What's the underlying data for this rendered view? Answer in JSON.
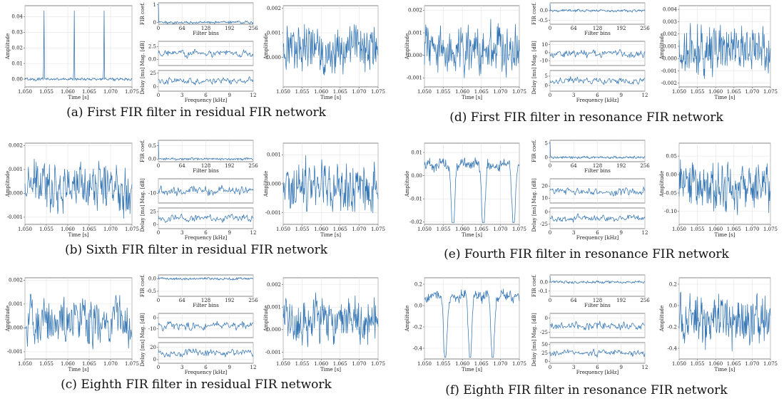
{
  "colors": {
    "trace": "#3576b4",
    "frame": "#555555",
    "grid": "#e3e3e3"
  },
  "labels": {
    "amplitude": "Amplitude",
    "time": "Time [s]",
    "fir_coef": "FIR coef.",
    "filter_bins": "Filter bins",
    "mag": "Mag. [dB]",
    "delay": "Delay [ms]",
    "frequency": "Frequency [kHz]"
  },
  "ticks": {
    "time": [
      "1.050",
      "1.055",
      "1.060",
      "1.065",
      "1.070",
      "1.075"
    ],
    "bins": [
      "0",
      "64",
      "128",
      "192",
      "256"
    ],
    "freq": [
      "0",
      "3",
      "6",
      "9",
      "12"
    ]
  },
  "chart_data": [
    {
      "id": "a",
      "type": "line",
      "caption": "(a) First FIR filter in residual FIR network",
      "input": {
        "kind": "spikes",
        "spikes_at": [
          1.0545,
          1.0615,
          1.0685
        ],
        "ylim": [
          -0.005,
          0.047
        ],
        "yticks": [
          "0.00",
          "0.01",
          "0.02",
          "0.03",
          "0.04"
        ],
        "ytick_values": [
          0,
          0.01,
          0.02,
          0.03,
          0.04
        ]
      },
      "coef": {
        "yticks": [
          "0",
          "1"
        ],
        "ytick_values": [
          0,
          1
        ],
        "ylim": [
          -0.1,
          1.1
        ]
      },
      "mag": {
        "yticks": [
          "0.0",
          "2.5"
        ],
        "ytick_values": [
          0,
          2.5
        ],
        "ylim": [
          -1.2,
          3.5
        ]
      },
      "delay": {
        "yticks": [
          "0",
          "25"
        ],
        "ytick_values": [
          0,
          25
        ],
        "ylim": [
          -8,
          30
        ]
      },
      "output": {
        "ylim": [
          -0.0012,
          0.0021
        ],
        "yticks": [
          "0.000",
          "0.001",
          "0.002"
        ],
        "ytick_values": [
          0,
          0.001,
          0.002
        ]
      }
    },
    {
      "id": "b",
      "type": "line",
      "caption": "(b) Sixth FIR filter in residual FIR network",
      "input": {
        "kind": "noise",
        "ylim": [
          -0.0013,
          0.0021
        ],
        "yticks": [
          "-0.001",
          "0.000",
          "0.001",
          "0.002"
        ],
        "ytick_values": [
          -0.001,
          0,
          0.001,
          0.002
        ]
      },
      "coef": {
        "yticks": [
          "0.5",
          "0.0"
        ],
        "ytick_values": [
          0.5,
          0
        ],
        "ylim": [
          -0.1,
          0.7
        ]
      },
      "mag": {
        "yticks": [
          "-10"
        ],
        "ytick_values": [
          -10
        ],
        "ylim": [
          -18,
          2
        ]
      },
      "delay": {
        "yticks": [
          "0",
          "25"
        ],
        "ytick_values": [
          0,
          25
        ],
        "ylim": [
          -8,
          32
        ]
      },
      "output": {
        "ylim": [
          -0.0014,
          0.0014
        ],
        "yticks": [
          "-0.001",
          "0.000",
          "0.001"
        ],
        "ytick_values": [
          -0.001,
          0,
          0.001
        ]
      }
    },
    {
      "id": "c",
      "type": "line",
      "caption": "(c) Eighth FIR filter in residual FIR network",
      "input": {
        "kind": "noise",
        "ylim": [
          -0.0013,
          0.0021
        ],
        "yticks": [
          "-0.001",
          "0.000",
          "0.001",
          "0.002"
        ],
        "ytick_values": [
          -0.001,
          0,
          0.001,
          0.002
        ]
      },
      "coef": {
        "yticks": [
          "0.0",
          "-0.5"
        ],
        "ytick_values": [
          0,
          -0.5
        ],
        "ylim": [
          -0.7,
          0.15
        ]
      },
      "mag": {
        "yticks": [
          "0",
          "-10"
        ],
        "ytick_values": [
          0,
          -10
        ],
        "ylim": [
          -18,
          4
        ]
      },
      "delay": {
        "yticks": [
          "0",
          "20"
        ],
        "ytick_values": [
          0,
          20
        ],
        "ylim": [
          -6,
          28
        ]
      },
      "output": {
        "ylim": [
          -0.0013,
          0.0023
        ],
        "yticks": [
          "-0.001",
          "0.000",
          "0.001",
          "0.002"
        ],
        "ytick_values": [
          -0.001,
          0,
          0.001,
          0.002
        ]
      }
    },
    {
      "id": "d",
      "type": "line",
      "caption": "(d) First FIR filter in resonance FIR network",
      "input": {
        "kind": "noise",
        "ylim": [
          -0.0014,
          0.0022
        ],
        "yticks": [
          "-0.001",
          "0.000",
          "0.001",
          "0.002"
        ],
        "ytick_values": [
          -0.001,
          0,
          0.001,
          0.002
        ]
      },
      "coef": {
        "yticks": [
          "0.0",
          "-0.5"
        ],
        "ytick_values": [
          0,
          -0.5
        ],
        "ylim": [
          -0.7,
          0.4
        ]
      },
      "mag": {
        "yticks": [
          "10",
          "0",
          "-10"
        ],
        "ytick_values": [
          10,
          0,
          -10
        ],
        "ylim": [
          -16,
          14
        ]
      },
      "delay": {
        "yticks": [
          "5",
          "0"
        ],
        "ytick_values": [
          5,
          0
        ],
        "ylim": [
          -3,
          8
        ]
      },
      "output": {
        "ylim": [
          -0.0023,
          0.0043
        ],
        "yticks": [
          "-0.002",
          "-0.001",
          "0.000",
          "0.001",
          "0.002",
          "0.003",
          "0.004"
        ],
        "ytick_values": [
          -0.002,
          -0.001,
          0,
          0.001,
          0.002,
          0.003,
          0.004
        ]
      }
    },
    {
      "id": "e",
      "type": "line",
      "caption": "(e) Fourth FIR filter in resonance FIR network",
      "input": {
        "kind": "dips",
        "dips_at": [
          1.0575,
          1.0655,
          1.0735
        ],
        "ylim": [
          -0.021,
          0.014
        ],
        "yticks": [
          "-0.02",
          "-0.01",
          "0.00",
          "0.01"
        ],
        "ytick_values": [
          -0.02,
          -0.01,
          0,
          0.01
        ]
      },
      "coef": {
        "yticks": [
          "5",
          "0"
        ],
        "ytick_values": [
          5,
          0
        ],
        "ylim": [
          -1.5,
          6
        ]
      },
      "mag": {
        "yticks": [
          "20",
          "10"
        ],
        "ytick_values": [
          20,
          10
        ],
        "ylim": [
          6,
          26
        ]
      },
      "delay": {
        "yticks": [
          "0",
          "-25"
        ],
        "ytick_values": [
          0,
          -25
        ],
        "ylim": [
          -34,
          8
        ]
      },
      "output": {
        "ylim": [
          -0.135,
          0.085
        ],
        "yticks": [
          "-0.10",
          "-0.05",
          "0.00",
          "0.05"
        ],
        "ytick_values": [
          -0.1,
          -0.05,
          0,
          0.05
        ]
      }
    },
    {
      "id": "f",
      "type": "line",
      "caption": "(f) Eighth FIR filter in resonance FIR network",
      "input": {
        "kind": "dips",
        "dips_at": [
          1.0555,
          1.062,
          1.068
        ],
        "ylim": [
          -0.5,
          0.26
        ],
        "yticks": [
          "-0.4",
          "-0.2",
          "0.0",
          "0.2"
        ],
        "ytick_values": [
          -0.4,
          -0.2,
          0,
          0.2
        ]
      },
      "coef": {
        "yticks": [
          "0.0",
          "-0.1"
        ],
        "ytick_values": [
          0,
          -0.1
        ],
        "ylim": [
          -0.16,
          0.08
        ]
      },
      "mag": {
        "yticks": [
          "0",
          "-25"
        ],
        "ytick_values": [
          0,
          -25
        ],
        "ylim": [
          -34,
          8
        ]
      },
      "delay": {
        "yticks": [
          "50",
          "25",
          "0"
        ],
        "ytick_values": [
          50,
          25,
          0
        ],
        "ylim": [
          -6,
          56
        ]
      },
      "output": {
        "ylim": [
          -0.5,
          0.26
        ],
        "yticks": [
          "-0.4",
          "-0.2",
          "0.0",
          "0.2"
        ],
        "ytick_values": [
          -0.4,
          -0.2,
          0,
          0.2
        ]
      }
    }
  ]
}
